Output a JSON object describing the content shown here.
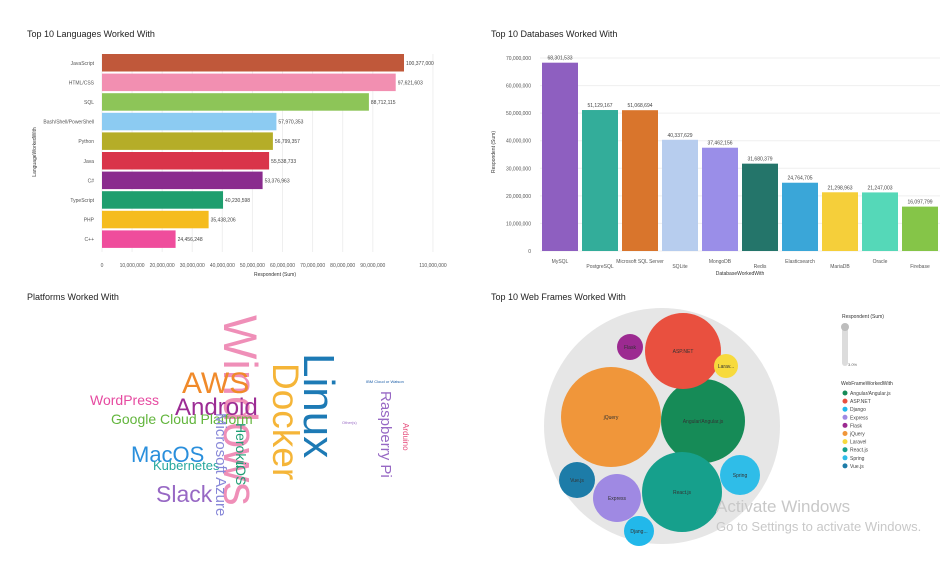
{
  "chart_data": [
    {
      "type": "bar",
      "orientation": "horizontal",
      "title": "Top 10 Languages Worked With",
      "xlabel": "Respondent (Sum)",
      "ylabel": "LanguageWorkedWith",
      "categories": [
        "JavaScript",
        "HTML/CSS",
        "SQL",
        "Bash/Shell/PowerShell",
        "Python",
        "Java",
        "C#",
        "TypeScript",
        "PHP",
        "C++"
      ],
      "values": [
        100377000,
        97621603,
        88712115,
        57970353,
        56799357,
        55538733,
        53376963,
        40230598,
        35438206,
        24456248
      ],
      "value_labels": [
        "100,377,000",
        "97,621,603",
        "88,712,115",
        "57,970,353",
        "56,799,357",
        "55,538,733",
        "53,376,963",
        "40,230,598",
        "35,438,206",
        "24,456,248"
      ],
      "colors": [
        "#c0583a",
        "#f28fb1",
        "#8dc558",
        "#8ccbf2",
        "#b5ad28",
        "#d9344a",
        "#8a2c8e",
        "#1e9e6e",
        "#f5bc1e",
        "#ef4d9c"
      ],
      "xticks": [
        0,
        10000000,
        20000000,
        30000000,
        40000000,
        50000000,
        60000000,
        70000000,
        80000000,
        90000000,
        110000000
      ],
      "xtick_labels": [
        "0",
        "10,000,000",
        "20,000,000",
        "30,000,000",
        "40,000,000",
        "50,000,000",
        "60,000,000",
        "70,000,000",
        "80,000,000",
        "90,000,000",
        "110,000,000"
      ],
      "xlim": [
        0,
        115000000
      ]
    },
    {
      "type": "bar",
      "title": "Top 10 Databases Worked With",
      "xlabel": "DatabaseWorkedWith",
      "ylabel": "Respondent (Sum)",
      "categories": [
        "MySQL",
        "PostgreSQL",
        "Microsoft SQL Server",
        "SQLite",
        "MongoDB",
        "Redis",
        "Elasticsearch",
        "MariaDB",
        "Oracle",
        "Firebase"
      ],
      "values": [
        68301533,
        51129167,
        51068694,
        40337629,
        37462156,
        31680379,
        24764705,
        21298963,
        21247003,
        16097799
      ],
      "value_labels": [
        "68,301,533",
        "51,129,167",
        "51,068,694",
        "40,337,629",
        "37,462,156",
        "31,680,379",
        "24,764,705",
        "21,298,963",
        "21,247,003",
        "16,097,799"
      ],
      "colors": [
        "#8e5fc0",
        "#33ad9a",
        "#d9752c",
        "#b7cdee",
        "#9a8ee8",
        "#24756a",
        "#3aa6d8",
        "#f5cf3a",
        "#55d8b8",
        "#85c548"
      ],
      "yticks": [
        0,
        10000000,
        20000000,
        30000000,
        40000000,
        50000000,
        60000000,
        70000000
      ],
      "ytick_labels": [
        "0",
        "10,000,000",
        "20,000,000",
        "30,000,000",
        "40,000,000",
        "50,000,000",
        "60,000,000",
        "70,000,000"
      ],
      "ylim": [
        0,
        70000000
      ]
    }
  ],
  "wordcloud": {
    "title": "Platforms Worked With",
    "words": [
      {
        "text": "Windows",
        "color": "#ef8fb8",
        "rotate": 90
      },
      {
        "text": "Linux",
        "color": "#1d7ab5",
        "rotate": 90
      },
      {
        "text": "Docker",
        "color": "#f5b538",
        "rotate": 90
      },
      {
        "text": "AWS",
        "color": "#f08a2a",
        "rotate": 0
      },
      {
        "text": "Android",
        "color": "#9c2c94",
        "rotate": 0
      },
      {
        "text": "WordPress",
        "color": "#e64aa0",
        "rotate": 0
      },
      {
        "text": "Google Cloud Platform",
        "color": "#62b53c",
        "rotate": 0
      },
      {
        "text": "MacOS",
        "color": "#2a8fdc",
        "rotate": 0
      },
      {
        "text": "Kubernetes",
        "color": "#27a89e",
        "rotate": 0
      },
      {
        "text": "Slack",
        "color": "#9768c4",
        "rotate": 0
      },
      {
        "text": "Microsoft Azure",
        "color": "#8787d8",
        "rotate": 90
      },
      {
        "text": "Heroku",
        "color": "#1f9e74",
        "rotate": 90
      },
      {
        "text": "iOS",
        "color": "#1f9e74",
        "rotate": 90
      },
      {
        "text": "Raspberry Pi",
        "color": "#9768c4",
        "rotate": 90
      },
      {
        "text": "Arduino",
        "color": "#e64a7a",
        "rotate": 90
      },
      {
        "text": "IBM Cloud or Watson",
        "color": "#1d5fa8",
        "rotate": 0
      },
      {
        "text": "Other(s)",
        "color": "#9768c4",
        "rotate": 0
      }
    ]
  },
  "bubble": {
    "title": "Top 10 Web Frames Worked With",
    "legend_size_title": "Respondent (Sum)",
    "legend_size_value": "3.0%",
    "legend_title": "WebFrameWorkedWith",
    "items": [
      {
        "name": "Angular/Angular.js",
        "label": "Angular/Angular.js",
        "color": "#168b57"
      },
      {
        "name": "ASP.NET",
        "label": "ASP.NET",
        "color": "#e9503f"
      },
      {
        "name": "Django",
        "label": "Djang...",
        "color": "#22b8ea"
      },
      {
        "name": "Express",
        "label": "Express",
        "color": "#9f89e3"
      },
      {
        "name": "Flask",
        "label": "Flask",
        "color": "#9c2a91"
      },
      {
        "name": "jQuery",
        "label": "jQuery",
        "color": "#f0963a"
      },
      {
        "name": "Laravel",
        "label": "Larav...",
        "color": "#f7da3d"
      },
      {
        "name": "React.js",
        "label": "React.js",
        "color": "#16a08c"
      },
      {
        "name": "Spring",
        "label": "Spring",
        "color": "#2fbde8"
      },
      {
        "name": "Vue.js",
        "label": "Vue.js",
        "color": "#1d7ca8"
      }
    ]
  },
  "watermark": {
    "line1": "Activate Windows",
    "line2": "Go to Settings to activate Windows."
  }
}
